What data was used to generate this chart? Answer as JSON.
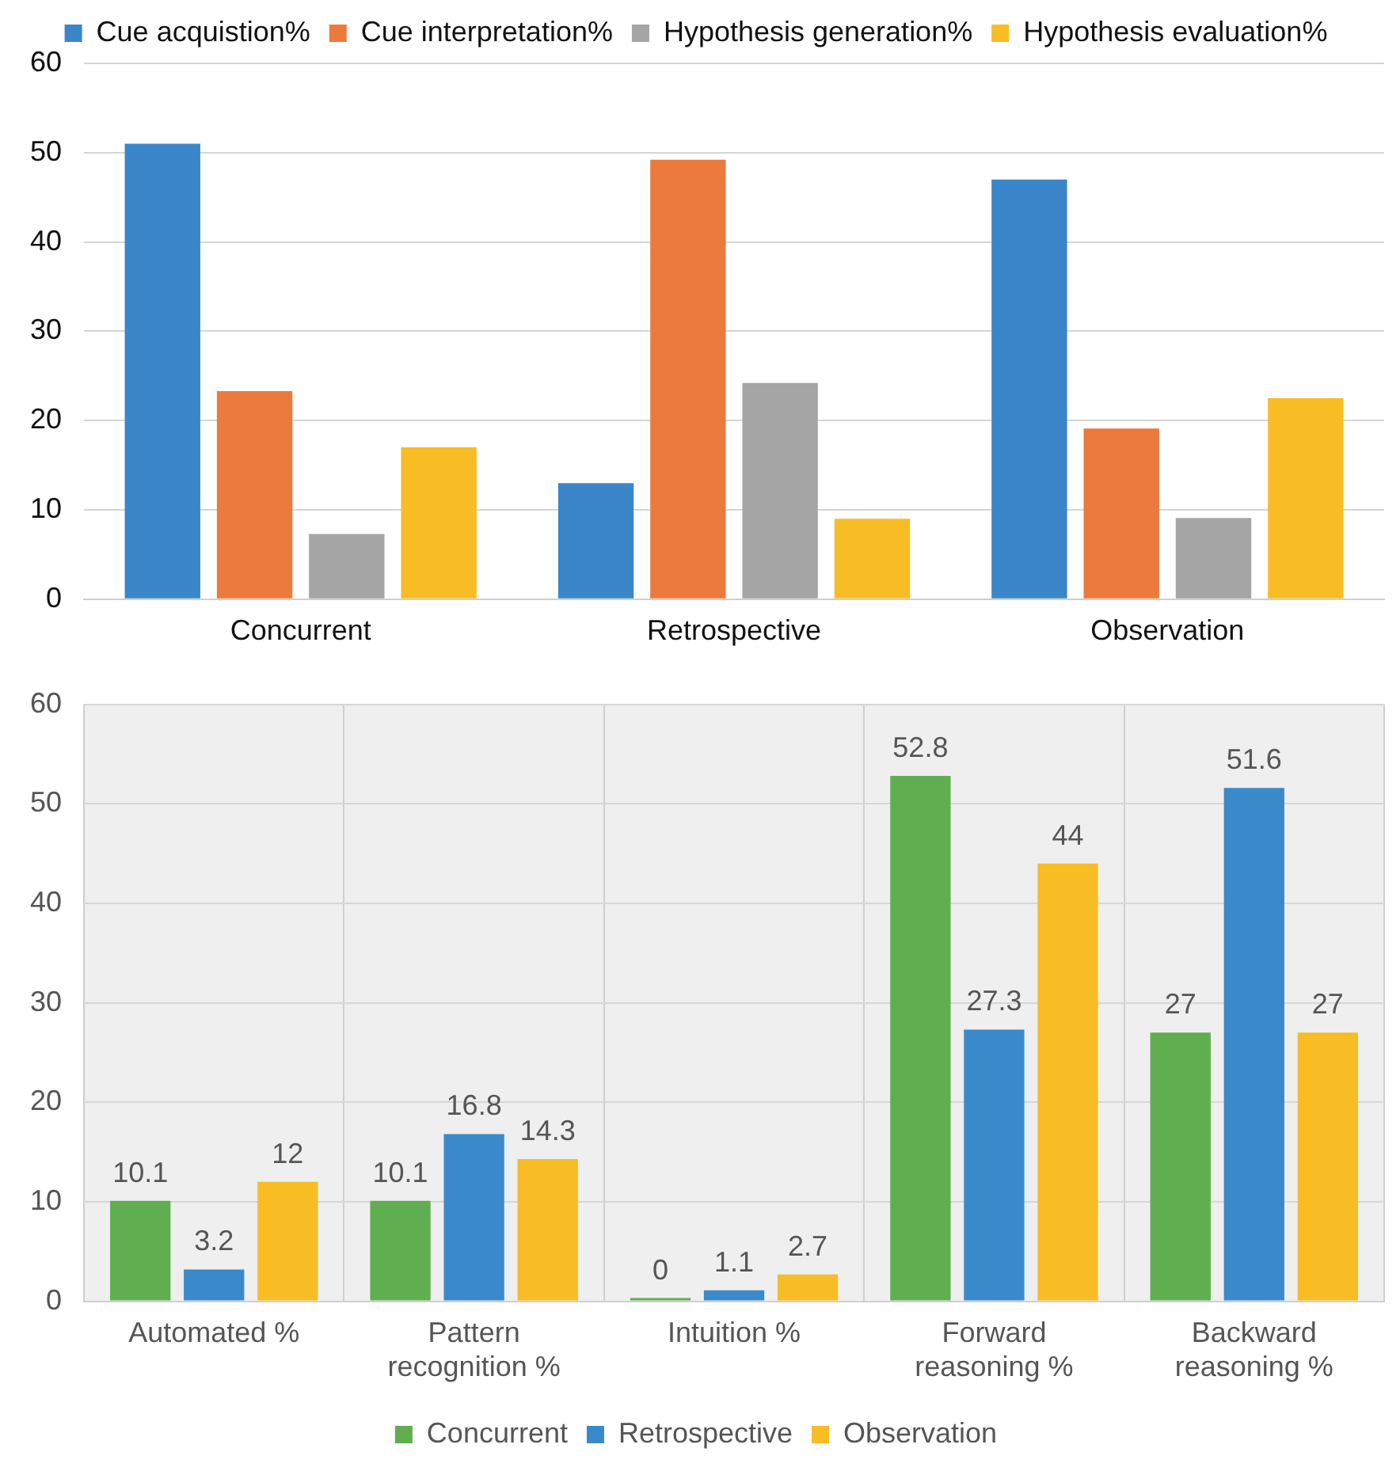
{
  "chart_data": [
    {
      "type": "bar",
      "categories": [
        "Concurrent",
        "Retrospective",
        "Observation"
      ],
      "legend": "top",
      "grid": "y",
      "ylim": [
        0,
        60
      ],
      "yticks": [
        0,
        10,
        20,
        30,
        40,
        50,
        60
      ],
      "series": [
        {
          "name": "Cue acquistion%",
          "color": "#3a86c8",
          "values": [
            51,
            13,
            47
          ]
        },
        {
          "name": "Cue interpretation%",
          "color": "#ec7a3c",
          "values": [
            23.3,
            49.2,
            19.1
          ]
        },
        {
          "name": "Hypothesis generation%",
          "color": "#a5a5a5",
          "values": [
            7.3,
            24.2,
            9.1
          ]
        },
        {
          "name": "Hypothesis evaluation%",
          "color": "#f8bc24",
          "values": [
            17,
            9,
            22.5
          ]
        }
      ]
    },
    {
      "type": "bar",
      "categories": [
        "Automated %",
        "Pattern recognition %",
        "Intuition %",
        "Forward reasoning %",
        "Backward reasoning %"
      ],
      "legend": "bottom",
      "grid": true,
      "data_labels": true,
      "ylim": [
        0,
        60
      ],
      "yticks": [
        0,
        10,
        20,
        30,
        40,
        50,
        60
      ],
      "series": [
        {
          "name": "Concurrent",
          "color": "#5fae4f",
          "values": [
            10.1,
            10.1,
            0,
            52.8,
            27
          ]
        },
        {
          "name": "Retrospective",
          "color": "#3a8acb",
          "values": [
            3.2,
            16.8,
            1.1,
            27.3,
            51.6
          ]
        },
        {
          "name": "Observation",
          "color": "#f8bc24",
          "values": [
            12,
            14.3,
            2.7,
            44,
            27
          ]
        }
      ]
    }
  ]
}
